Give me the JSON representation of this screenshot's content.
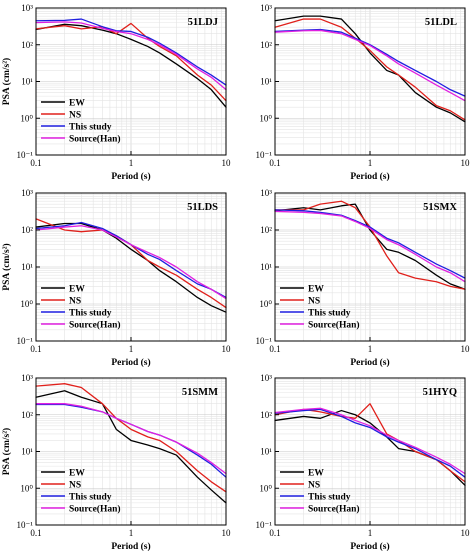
{
  "chart_data": [
    {
      "type": "line",
      "station": "51LDJ",
      "xlabel": "Period (s)",
      "ylabel": "PSA (cm/s²)",
      "xscale": "log",
      "yscale": "log",
      "xlim": [
        0.1,
        10
      ],
      "ylim": [
        0.1,
        1000
      ],
      "x_ticks": [
        "0.1",
        "1",
        "10"
      ],
      "y_ticks": [
        "10⁻¹",
        "10⁰",
        "10¹",
        "10²",
        "10³"
      ],
      "grid": true,
      "legend": "bottom-left",
      "series": [
        {
          "name": "EW",
          "color": "#000000",
          "x": [
            0.1,
            0.2,
            0.3,
            0.5,
            0.7,
            1,
            1.5,
            2,
            3,
            5,
            7,
            10
          ],
          "y": [
            260,
            360,
            330,
            250,
            200,
            140,
            90,
            60,
            30,
            12,
            6,
            2
          ]
        },
        {
          "name": "NS",
          "color": "#e0201b",
          "x": [
            0.1,
            0.2,
            0.3,
            0.5,
            0.7,
            1,
            1.5,
            2,
            3,
            5,
            7,
            10
          ],
          "y": [
            270,
            330,
            270,
            310,
            200,
            380,
            150,
            90,
            50,
            15,
            8,
            3
          ]
        },
        {
          "name": "This study",
          "color": "#1f1fe0",
          "x": [
            0.1,
            0.2,
            0.3,
            0.5,
            0.7,
            1,
            1.5,
            2,
            3,
            5,
            7,
            10
          ],
          "y": [
            450,
            460,
            500,
            310,
            240,
            230,
            160,
            110,
            60,
            25,
            15,
            8
          ]
        },
        {
          "name": "Source(Han)",
          "color": "#e020e0",
          "x": [
            0.1,
            0.2,
            0.3,
            0.5,
            0.7,
            1,
            1.5,
            2,
            3,
            5,
            7,
            10
          ],
          "y": [
            400,
            420,
            390,
            280,
            230,
            200,
            140,
            100,
            55,
            22,
            13,
            6
          ]
        }
      ]
    },
    {
      "type": "line",
      "station": "51LDL",
      "xlabel": "Period (s)",
      "ylabel": "",
      "xscale": "log",
      "yscale": "log",
      "xlim": [
        0.1,
        10
      ],
      "ylim": [
        0.1,
        1000
      ],
      "x_ticks": [
        "0.1",
        "1",
        "10"
      ],
      "y_ticks": [
        "10⁻¹",
        "10⁰",
        "10¹",
        "10²",
        "10³"
      ],
      "grid": true,
      "legend": "none",
      "series": [
        {
          "name": "EW",
          "color": "#000000",
          "x": [
            0.1,
            0.2,
            0.3,
            0.5,
            0.7,
            1,
            1.5,
            2,
            3,
            5,
            7,
            10
          ],
          "y": [
            450,
            600,
            600,
            500,
            200,
            60,
            20,
            15,
            5,
            2,
            1.4,
            0.8
          ]
        },
        {
          "name": "NS",
          "color": "#e0201b",
          "x": [
            0.1,
            0.2,
            0.3,
            0.5,
            0.7,
            1,
            1.5,
            2,
            3,
            5,
            7,
            10
          ],
          "y": [
            300,
            500,
            500,
            300,
            150,
            70,
            25,
            15,
            7,
            2.2,
            1.6,
            0.9
          ]
        },
        {
          "name": "This study",
          "color": "#1f1fe0",
          "x": [
            0.1,
            0.2,
            0.3,
            0.5,
            0.7,
            1,
            1.5,
            2,
            3,
            5,
            7,
            10
          ],
          "y": [
            230,
            250,
            260,
            220,
            150,
            100,
            55,
            35,
            20,
            10,
            6,
            4
          ]
        },
        {
          "name": "Source(Han)",
          "color": "#e020e0",
          "x": [
            0.1,
            0.2,
            0.3,
            0.5,
            0.7,
            1,
            1.5,
            2,
            3,
            5,
            7,
            10
          ],
          "y": [
            220,
            240,
            245,
            200,
            140,
            95,
            50,
            30,
            17,
            8,
            5,
            3
          ]
        }
      ]
    },
    {
      "type": "line",
      "station": "51LDS",
      "xlabel": "Period (s)",
      "ylabel": "PSA (cm/s²)",
      "xscale": "log",
      "yscale": "log",
      "xlim": [
        0.1,
        10
      ],
      "ylim": [
        0.1,
        1000
      ],
      "x_ticks": [
        "0.1",
        "1",
        "10"
      ],
      "y_ticks": [
        "10⁻¹",
        "10⁰",
        "10¹",
        "10²",
        "10³"
      ],
      "grid": true,
      "legend": "bottom-left",
      "series": [
        {
          "name": "EW",
          "color": "#000000",
          "x": [
            0.1,
            0.2,
            0.3,
            0.5,
            0.7,
            1,
            1.5,
            2,
            3,
            5,
            7,
            10
          ],
          "y": [
            120,
            150,
            150,
            100,
            60,
            30,
            15,
            8,
            4,
            1.5,
            0.9,
            0.6
          ]
        },
        {
          "name": "NS",
          "color": "#e0201b",
          "x": [
            0.1,
            0.2,
            0.3,
            0.5,
            0.7,
            1,
            1.5,
            2,
            3,
            5,
            7,
            10
          ],
          "y": [
            200,
            100,
            90,
            100,
            70,
            40,
            15,
            10,
            6,
            2.5,
            1.5,
            0.8
          ]
        },
        {
          "name": "This study",
          "color": "#1f1fe0",
          "x": [
            0.1,
            0.2,
            0.3,
            0.5,
            0.7,
            1,
            1.5,
            2,
            3,
            5,
            7,
            10
          ],
          "y": [
            110,
            130,
            160,
            110,
            70,
            40,
            22,
            16,
            8,
            3.5,
            2.5,
            1.5
          ]
        },
        {
          "name": "Source(Han)",
          "color": "#e020e0",
          "x": [
            0.1,
            0.2,
            0.3,
            0.5,
            0.7,
            1,
            1.5,
            2,
            3,
            5,
            7,
            10
          ],
          "y": [
            100,
            120,
            130,
            100,
            65,
            40,
            25,
            18,
            10,
            4,
            2.5,
            1.4
          ]
        }
      ]
    },
    {
      "type": "line",
      "station": "51SMX",
      "xlabel": "Period (s)",
      "ylabel": "",
      "xscale": "log",
      "yscale": "log",
      "xlim": [
        0.1,
        10
      ],
      "ylim": [
        0.1,
        1000
      ],
      "x_ticks": [
        "0.1",
        "1",
        "10"
      ],
      "y_ticks": [
        "10⁻¹",
        "10⁰",
        "10¹",
        "10²",
        "10³"
      ],
      "grid": true,
      "legend": "bottom-left",
      "series": [
        {
          "name": "EW",
          "color": "#000000",
          "x": [
            0.1,
            0.2,
            0.3,
            0.5,
            0.7,
            1,
            1.5,
            2,
            3,
            5,
            7,
            10
          ],
          "y": [
            330,
            400,
            350,
            450,
            500,
            100,
            30,
            25,
            15,
            6,
            3.5,
            2.5
          ]
        },
        {
          "name": "NS",
          "color": "#e0201b",
          "x": [
            0.1,
            0.2,
            0.3,
            0.5,
            0.7,
            1,
            1.5,
            2,
            3,
            5,
            7,
            10
          ],
          "y": [
            350,
            350,
            500,
            600,
            400,
            120,
            20,
            7,
            5,
            4,
            3,
            2.5
          ]
        },
        {
          "name": "This study",
          "color": "#1f1fe0",
          "x": [
            0.1,
            0.2,
            0.3,
            0.5,
            0.7,
            1,
            1.5,
            2,
            3,
            5,
            7,
            10
          ],
          "y": [
            350,
            330,
            300,
            250,
            180,
            120,
            60,
            45,
            25,
            12,
            8,
            5
          ]
        },
        {
          "name": "Source(Han)",
          "color": "#e020e0",
          "x": [
            0.1,
            0.2,
            0.3,
            0.5,
            0.7,
            1,
            1.5,
            2,
            3,
            5,
            7,
            10
          ],
          "y": [
            320,
            300,
            280,
            240,
            170,
            110,
            55,
            40,
            22,
            10,
            7,
            4
          ]
        }
      ]
    },
    {
      "type": "line",
      "station": "51SMM",
      "xlabel": "Period (s)",
      "ylabel": "PSA (cm/s²)",
      "xscale": "log",
      "yscale": "log",
      "xlim": [
        0.1,
        10
      ],
      "ylim": [
        0.1,
        1000
      ],
      "x_ticks": [
        "0.1",
        "1",
        "10"
      ],
      "y_ticks": [
        "10⁻¹",
        "10⁰",
        "10¹",
        "10²",
        "10³"
      ],
      "grid": true,
      "legend": "bottom-left",
      "series": [
        {
          "name": "EW",
          "color": "#000000",
          "x": [
            0.1,
            0.2,
            0.3,
            0.5,
            0.7,
            1,
            1.5,
            2,
            3,
            5,
            7,
            10
          ],
          "y": [
            300,
            450,
            300,
            200,
            40,
            20,
            15,
            12,
            8,
            2,
            0.9,
            0.4
          ]
        },
        {
          "name": "NS",
          "color": "#e0201b",
          "x": [
            0.1,
            0.2,
            0.3,
            0.5,
            0.7,
            1,
            1.5,
            2,
            3,
            5,
            7,
            10
          ],
          "y": [
            600,
            700,
            550,
            200,
            80,
            40,
            25,
            20,
            10,
            3,
            1.5,
            0.8
          ]
        },
        {
          "name": "This study",
          "color": "#1f1fe0",
          "x": [
            0.1,
            0.2,
            0.3,
            0.5,
            0.7,
            1,
            1.5,
            2,
            3,
            5,
            7,
            10
          ],
          "y": [
            190,
            190,
            160,
            120,
            80,
            55,
            35,
            28,
            18,
            8,
            4.5,
            2
          ]
        },
        {
          "name": "Source(Han)",
          "color": "#e020e0",
          "x": [
            0.1,
            0.2,
            0.3,
            0.5,
            0.7,
            1,
            1.5,
            2,
            3,
            5,
            7,
            10
          ],
          "y": [
            200,
            200,
            170,
            120,
            80,
            55,
            35,
            28,
            18,
            9,
            5,
            2.5
          ]
        }
      ]
    },
    {
      "type": "line",
      "station": "51HYQ",
      "xlabel": "Period (s)",
      "ylabel": "",
      "xscale": "log",
      "yscale": "log",
      "xlim": [
        0.1,
        10
      ],
      "ylim": [
        0.1,
        1000
      ],
      "x_ticks": [
        "0.1",
        "1",
        "10"
      ],
      "y_ticks": [
        "10⁻¹",
        "10⁰",
        "10¹",
        "10²",
        "10³"
      ],
      "grid": true,
      "legend": "bottom-left",
      "series": [
        {
          "name": "EW",
          "color": "#000000",
          "x": [
            0.1,
            0.2,
            0.3,
            0.5,
            0.7,
            1,
            1.5,
            2,
            3,
            5,
            7,
            10
          ],
          "y": [
            70,
            90,
            80,
            130,
            100,
            60,
            25,
            12,
            10,
            6,
            3,
            1.2
          ]
        },
        {
          "name": "NS",
          "color": "#e0201b",
          "x": [
            0.1,
            0.2,
            0.3,
            0.5,
            0.7,
            1,
            1.5,
            2,
            3,
            5,
            7,
            10
          ],
          "y": [
            100,
            140,
            120,
            90,
            80,
            200,
            30,
            20,
            10,
            6,
            3,
            1.5
          ]
        },
        {
          "name": "This study",
          "color": "#1f1fe0",
          "x": [
            0.1,
            0.2,
            0.3,
            0.5,
            0.7,
            1,
            1.5,
            2,
            3,
            5,
            7,
            10
          ],
          "y": [
            110,
            130,
            140,
            90,
            60,
            45,
            25,
            18,
            12,
            6,
            4,
            2
          ]
        },
        {
          "name": "Source(Han)",
          "color": "#e020e0",
          "x": [
            0.1,
            0.2,
            0.3,
            0.5,
            0.7,
            1,
            1.5,
            2,
            3,
            5,
            7,
            10
          ],
          "y": [
            115,
            140,
            150,
            100,
            70,
            50,
            28,
            20,
            13,
            7,
            4.5,
            2.5
          ]
        }
      ]
    }
  ]
}
